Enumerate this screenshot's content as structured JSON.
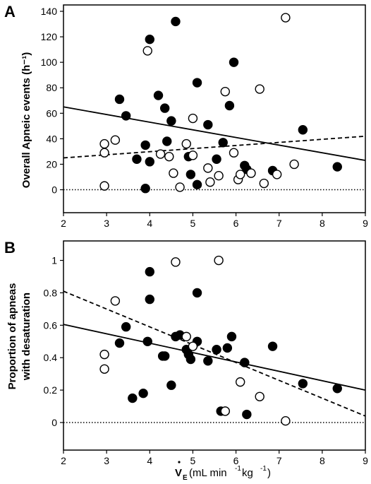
{
  "chart_data": [
    {
      "type": "scatter",
      "panel_label": "A",
      "ylabel": "Overall Apneic events (h⁻¹)",
      "xlabel": "",
      "xlim": [
        2,
        9
      ],
      "ylim": [
        -18,
        145
      ],
      "xticks": [
        2,
        3,
        4,
        5,
        6,
        7,
        8,
        9
      ],
      "yticks": [
        0,
        20,
        40,
        60,
        80,
        100,
        120,
        140
      ],
      "series": [
        {
          "style": "filled",
          "points": [
            [
              3.3,
              71
            ],
            [
              3.45,
              58
            ],
            [
              3.7,
              24
            ],
            [
              3.9,
              35
            ],
            [
              3.9,
              1
            ],
            [
              4.0,
              118
            ],
            [
              4.0,
              22
            ],
            [
              4.2,
              74
            ],
            [
              4.35,
              64
            ],
            [
              4.4,
              38
            ],
            [
              4.5,
              54
            ],
            [
              4.6,
              132
            ],
            [
              4.9,
              26
            ],
            [
              4.95,
              12
            ],
            [
              5.1,
              84
            ],
            [
              5.1,
              4
            ],
            [
              5.35,
              51
            ],
            [
              5.55,
              24
            ],
            [
              5.7,
              37
            ],
            [
              5.85,
              66
            ],
            [
              5.95,
              100
            ],
            [
              6.2,
              19
            ],
            [
              6.25,
              16
            ],
            [
              6.85,
              15
            ],
            [
              7.55,
              47
            ],
            [
              8.35,
              18
            ]
          ]
        },
        {
          "style": "open",
          "points": [
            [
              2.95,
              36
            ],
            [
              2.95,
              29
            ],
            [
              2.95,
              3
            ],
            [
              3.2,
              39
            ],
            [
              3.95,
              109
            ],
            [
              4.25,
              28
            ],
            [
              4.45,
              26
            ],
            [
              4.55,
              13
            ],
            [
              4.7,
              2
            ],
            [
              4.85,
              36
            ],
            [
              5.0,
              27
            ],
            [
              5.0,
              56
            ],
            [
              5.35,
              17
            ],
            [
              5.4,
              6
            ],
            [
              5.6,
              11
            ],
            [
              5.75,
              77
            ],
            [
              5.95,
              29
            ],
            [
              6.05,
              8
            ],
            [
              6.1,
              12
            ],
            [
              6.35,
              13
            ],
            [
              6.55,
              79
            ],
            [
              6.65,
              5
            ],
            [
              6.95,
              12
            ],
            [
              7.15,
              135
            ],
            [
              7.35,
              20
            ]
          ]
        }
      ],
      "fits": [
        {
          "style": "solid",
          "points": [
            [
              2,
              65
            ],
            [
              9,
              23
            ]
          ]
        },
        {
          "style": "dashed",
          "points": [
            [
              2,
              25
            ],
            [
              9,
              42
            ]
          ]
        },
        {
          "style": "dotted",
          "points": [
            [
              2,
              0
            ],
            [
              9,
              0
            ]
          ]
        }
      ]
    },
    {
      "type": "scatter",
      "panel_label": "B",
      "ylabel_lines": [
        "Proportion of apneas",
        "with desaturation"
      ],
      "xlabel_main": "V",
      "xlabel_sub": "E",
      "xlabel_rest": " (mL min",
      "xlabel_exp1": "-1",
      "xlabel_mid": " kg",
      "xlabel_exp2": "-1",
      "xlabel_end": ")",
      "xlim": [
        2,
        9
      ],
      "ylim": [
        -0.17,
        1.12
      ],
      "xticks": [
        2,
        3,
        4,
        5,
        6,
        7,
        8,
        9
      ],
      "yticks": [
        0,
        0.2,
        0.4,
        0.6,
        0.8,
        1
      ],
      "series": [
        {
          "style": "filled",
          "points": [
            [
              3.3,
              0.49
            ],
            [
              3.45,
              0.59
            ],
            [
              3.6,
              0.15
            ],
            [
              3.85,
              0.18
            ],
            [
              3.95,
              0.5
            ],
            [
              4.0,
              0.93
            ],
            [
              4.0,
              0.76
            ],
            [
              4.3,
              0.41
            ],
            [
              4.35,
              0.41
            ],
            [
              4.5,
              0.23
            ],
            [
              4.6,
              0.53
            ],
            [
              4.7,
              0.54
            ],
            [
              4.85,
              0.45
            ],
            [
              4.9,
              0.42
            ],
            [
              4.95,
              0.39
            ],
            [
              5.1,
              0.8
            ],
            [
              5.1,
              0.5
            ],
            [
              5.35,
              0.38
            ],
            [
              5.55,
              0.45
            ],
            [
              5.65,
              0.07
            ],
            [
              5.75,
              0.07
            ],
            [
              5.8,
              0.46
            ],
            [
              5.9,
              0.53
            ],
            [
              6.2,
              0.37
            ],
            [
              6.25,
              0.05
            ],
            [
              6.85,
              0.47
            ],
            [
              7.55,
              0.24
            ],
            [
              8.35,
              0.21
            ]
          ]
        },
        {
          "style": "open",
          "points": [
            [
              2.95,
              0.42
            ],
            [
              2.95,
              0.33
            ],
            [
              3.2,
              0.75
            ],
            [
              4.6,
              0.99
            ],
            [
              4.85,
              0.53
            ],
            [
              5.0,
              0.47
            ],
            [
              5.6,
              1.0
            ],
            [
              5.75,
              0.07
            ],
            [
              6.1,
              0.25
            ],
            [
              6.55,
              0.16
            ],
            [
              7.15,
              0.01
            ]
          ]
        }
      ],
      "fits": [
        {
          "style": "solid",
          "points": [
            [
              2,
              0.605
            ],
            [
              9,
              0.2
            ]
          ]
        },
        {
          "style": "dashed",
          "points": [
            [
              2,
              0.81
            ],
            [
              9,
              0.04
            ]
          ]
        },
        {
          "style": "dotted",
          "points": [
            [
              2,
              0
            ],
            [
              9,
              0
            ]
          ]
        }
      ]
    }
  ]
}
